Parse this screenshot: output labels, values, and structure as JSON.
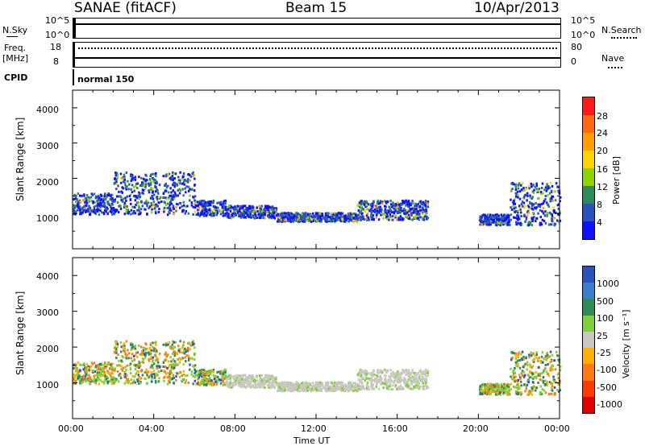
{
  "header": {
    "station": "SANAE (fitACF)",
    "beam": "Beam 15",
    "date": "10/Apr/2013"
  },
  "sky_panel": {
    "left_label": "N.Sky",
    "top_tick": "10^5",
    "bottom_tick": "10^0",
    "right_top_tick": "10^5",
    "right_bottom_tick": "10^0",
    "right_label": "N.Search"
  },
  "freq_panel": {
    "left_label_1": "Freq.",
    "left_label_2": "[MHz]",
    "left_top_tick": "18",
    "left_bottom_tick": "8",
    "right_top_tick": "80",
    "right_bottom_tick": "0",
    "right_label": "Nave"
  },
  "cpid_panel": {
    "left_label": "CPID",
    "text": "normal 150"
  },
  "x_axis": {
    "label": "Time UT",
    "ticks": [
      "00:00",
      "04:00",
      "08:00",
      "12:00",
      "16:00",
      "20:00",
      "00:00"
    ]
  },
  "power_panel": {
    "ylabel": "Slant Range [km]",
    "yticks": [
      "1000",
      "2000",
      "3000",
      "4000"
    ],
    "colorbar_label": "Power [dB]",
    "colorbar_ticks": [
      "28",
      "24",
      "20",
      "16",
      "12",
      "8",
      "4"
    ],
    "colors": [
      "#ff1a1a",
      "#ff6a10",
      "#ffa000",
      "#ffd400",
      "#8fd400",
      "#2e8b57",
      "#2a52be",
      "#1010ff"
    ]
  },
  "velocity_panel": {
    "ylabel": "Slant Range [km]",
    "yticks": [
      "1000",
      "2000",
      "3000",
      "4000"
    ],
    "colorbar_label": "Velocity [m s⁻¹]",
    "colorbar_ticks": [
      "1000",
      "500",
      "100",
      "25",
      "-25",
      "-100",
      "-500",
      "-1000"
    ],
    "colors": [
      "#2a52be",
      "#3a7fcf",
      "#2e8b57",
      "#7fd03a",
      "#c8c8c0",
      "#ffb000",
      "#ff7a10",
      "#ff3a00",
      "#e00000"
    ]
  },
  "chart_data": {
    "type": "heatmap",
    "x_range_hours": [
      0,
      24
    ],
    "y_range_km": [
      0,
      4500
    ],
    "bands": [
      {
        "t": [
          0.0,
          2.0
        ],
        "r": [
          1000,
          1600
        ]
      },
      {
        "t": [
          2.0,
          6.0
        ],
        "r": [
          1000,
          2200
        ]
      },
      {
        "t": [
          6.0,
          7.5
        ],
        "r": [
          950,
          1400
        ]
      },
      {
        "t": [
          7.5,
          10.0
        ],
        "r": [
          900,
          1250
        ]
      },
      {
        "t": [
          10.0,
          14.0
        ],
        "r": [
          800,
          1050
        ]
      },
      {
        "t": [
          14.0,
          17.5
        ],
        "r": [
          850,
          1400
        ]
      },
      {
        "t": [
          20.0,
          21.5
        ],
        "r": [
          700,
          1000
        ]
      },
      {
        "t": [
          21.5,
          24.0
        ],
        "r": [
          700,
          1900
        ]
      }
    ]
  }
}
